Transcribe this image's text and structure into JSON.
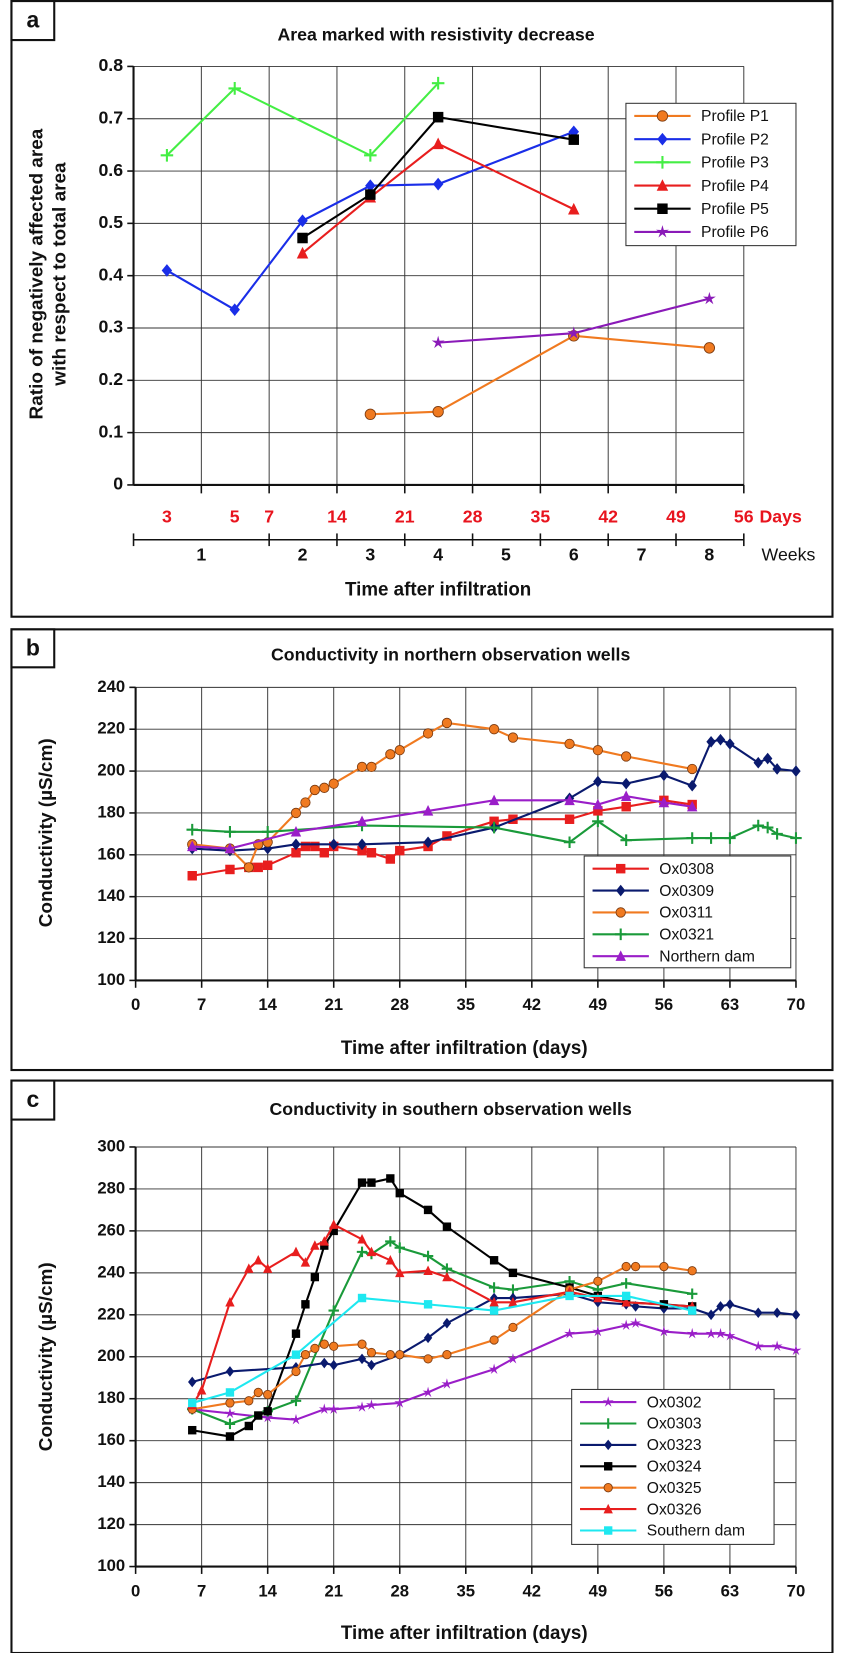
{
  "chart_data": [
    {
      "type": "line",
      "panel_label": "a",
      "title": "Area marked with resistivity decrease",
      "ylabel": [
        "Ratio of negatively affected area",
        "with respect to total area"
      ],
      "xlabel": "Time after infiltration",
      "x_day_labels": [
        "3",
        "5",
        "7",
        "14",
        "21",
        "28",
        "35",
        "42",
        "49",
        "56"
      ],
      "x_day_unit": "Days",
      "x_day_color": "#e8141e",
      "x_week_labels": [
        "1",
        "2",
        "3",
        "4",
        "5",
        "6",
        "7",
        "8"
      ],
      "x_week_unit": "Weeks",
      "ylim": [
        0,
        0.8
      ],
      "yticks": [
        0,
        0.1,
        0.2,
        0.3,
        0.4,
        0.5,
        0.6,
        0.7,
        0.8
      ],
      "grid": true,
      "series": [
        {
          "name": "Profile P1",
          "color": "#f07a20",
          "marker": "circle",
          "values": [
            null,
            null,
            null,
            0.135,
            0.14,
            null,
            0.285,
            null,
            0.262
          ]
        },
        {
          "name": "Profile P2",
          "color": "#1a2ee8",
          "marker": "diamond",
          "values": [
            0.41,
            0.335,
            0.505,
            0.572,
            0.575,
            null,
            0.675,
            null,
            null
          ]
        },
        {
          "name": "Profile P3",
          "color": "#44ee44",
          "marker": "plus",
          "values": [
            0.63,
            0.758,
            null,
            0.63,
            0.768,
            null,
            null,
            null,
            null
          ]
        },
        {
          "name": "Profile P4",
          "color": "#e81e1e",
          "marker": "triangle",
          "values": [
            null,
            null,
            0.443,
            0.55,
            0.652,
            null,
            0.527,
            null,
            null
          ]
        },
        {
          "name": "Profile P5",
          "color": "#000000",
          "marker": "square",
          "values": [
            null,
            null,
            0.472,
            0.555,
            0.703,
            null,
            0.66,
            null,
            null
          ]
        },
        {
          "name": "Profile P6",
          "color": "#8a1ab8",
          "marker": "star",
          "values": [
            null,
            null,
            null,
            null,
            0.272,
            null,
            0.29,
            null,
            0.356
          ]
        }
      ]
    },
    {
      "type": "line",
      "panel_label": "b",
      "title": "Conductivity in northern observation wells",
      "ylabel": "Conductivity (µS/cm)",
      "xlabel": "Time after infiltration (days)",
      "xlim": [
        0,
        70
      ],
      "xticks": [
        0,
        7,
        14,
        21,
        28,
        35,
        42,
        49,
        56,
        63,
        70
      ],
      "ylim": [
        100,
        240
      ],
      "yticks": [
        100,
        120,
        140,
        160,
        180,
        200,
        220,
        240
      ],
      "grid": true,
      "series": [
        {
          "name": "Ox0308",
          "color": "#e81e1e",
          "marker": "square",
          "x": [
            6,
            10,
            12,
            13,
            14,
            17,
            18,
            19,
            20,
            21,
            24,
            25,
            27,
            28,
            31,
            33,
            38,
            40,
            46,
            49,
            52,
            56,
            59
          ],
          "values": [
            150,
            153,
            154,
            154,
            155,
            161,
            164,
            164,
            161,
            164,
            162,
            161,
            158,
            162,
            164,
            169,
            176,
            177,
            177,
            181,
            183,
            186,
            184
          ]
        },
        {
          "name": "Ox0309",
          "color": "#0a1a6e",
          "marker": "diamond",
          "x": [
            6,
            10,
            14,
            17,
            21,
            24,
            31,
            38,
            46,
            49,
            52,
            56,
            59,
            61,
            62,
            63,
            66,
            67,
            68,
            70
          ],
          "values": [
            163,
            162,
            163,
            165,
            165,
            165,
            166,
            173,
            187,
            195,
            194,
            198,
            193,
            214,
            215,
            213,
            204,
            206,
            201,
            200
          ]
        },
        {
          "name": "Ox0311",
          "color": "#f07a20",
          "marker": "circle",
          "x": [
            6,
            10,
            12,
            13,
            14,
            17,
            18,
            19,
            20,
            21,
            24,
            25,
            27,
            28,
            31,
            33,
            38,
            40,
            46,
            49,
            52,
            59
          ],
          "values": [
            165,
            163,
            154,
            165,
            166,
            180,
            185,
            191,
            192,
            194,
            202,
            202,
            208,
            210,
            218,
            223,
            220,
            216,
            213,
            210,
            207,
            201
          ]
        },
        {
          "name": "Ox0321",
          "color": "#1a9a3a",
          "marker": "plus",
          "x": [
            6,
            10,
            14,
            24,
            38,
            46,
            49,
            52,
            59,
            61,
            63,
            66,
            67,
            68,
            70
          ],
          "values": [
            172,
            171,
            171,
            174,
            173,
            166,
            176,
            167,
            168,
            168,
            168,
            174,
            173,
            170,
            168
          ]
        },
        {
          "name": "Northern dam",
          "color": "#9a1ec8",
          "marker": "triangle",
          "x": [
            6,
            10,
            17,
            24,
            31,
            38,
            46,
            49,
            52,
            56,
            59
          ],
          "values": [
            164,
            163,
            171,
            176,
            181,
            186,
            186,
            184,
            188,
            185,
            183
          ]
        }
      ]
    },
    {
      "type": "line",
      "panel_label": "c",
      "title": "Conductivity in southern observation wells",
      "ylabel": "Conductivity (µS/cm)",
      "xlabel": "Time after infiltration (days)",
      "xlim": [
        0,
        70
      ],
      "xticks": [
        0,
        7,
        14,
        21,
        28,
        35,
        42,
        49,
        56,
        63,
        70
      ],
      "ylim": [
        100,
        300
      ],
      "yticks": [
        100,
        120,
        140,
        160,
        180,
        200,
        220,
        240,
        260,
        280,
        300
      ],
      "grid": true,
      "series": [
        {
          "name": "Ox0302",
          "color": "#9a1ec8",
          "marker": "star",
          "x": [
            6,
            10,
            14,
            17,
            20,
            21,
            24,
            25,
            28,
            31,
            33,
            38,
            40,
            46,
            49,
            52,
            53,
            56,
            59,
            61,
            62,
            63,
            66,
            68,
            70
          ],
          "values": [
            175,
            173,
            171,
            170,
            175,
            175,
            176,
            177,
            178,
            183,
            187,
            194,
            199,
            211,
            212,
            215,
            216,
            212,
            211,
            211,
            211,
            210,
            205,
            205,
            203
          ]
        },
        {
          "name": "Ox0303",
          "color": "#1a9a3a",
          "marker": "plus",
          "x": [
            6,
            10,
            14,
            17,
            21,
            24,
            25,
            27,
            28,
            31,
            33,
            38,
            40,
            46,
            49,
            52,
            59
          ],
          "values": [
            175,
            168,
            174,
            179,
            222,
            250,
            249,
            255,
            252,
            248,
            242,
            233,
            232,
            236,
            232,
            235,
            230
          ]
        },
        {
          "name": "Ox0323",
          "color": "#0a1a6e",
          "marker": "diamond",
          "x": [
            6,
            10,
            17,
            20,
            21,
            24,
            25,
            28,
            31,
            33,
            38,
            40,
            46,
            49,
            52,
            53,
            56,
            59,
            61,
            62,
            63,
            66,
            68,
            70
          ],
          "values": [
            188,
            193,
            195,
            197,
            196,
            199,
            196,
            201,
            209,
            216,
            228,
            228,
            230,
            226,
            225,
            224,
            223,
            223,
            220,
            224,
            225,
            221,
            221,
            220
          ]
        },
        {
          "name": "Ox0324",
          "color": "#000000",
          "marker": "square",
          "x": [
            6,
            10,
            12,
            13,
            14,
            17,
            18,
            19,
            20,
            21,
            24,
            25,
            27,
            28,
            31,
            33,
            38,
            40,
            46,
            49,
            52,
            56,
            59
          ],
          "values": [
            165,
            162,
            167,
            172,
            174,
            211,
            225,
            238,
            253,
            260,
            283,
            283,
            285,
            278,
            270,
            262,
            246,
            240,
            233,
            229,
            226,
            225,
            224
          ]
        },
        {
          "name": "Ox0325",
          "color": "#f07a20",
          "marker": "circle",
          "x": [
            6,
            10,
            12,
            13,
            14,
            17,
            18,
            19,
            20,
            21,
            24,
            25,
            27,
            28,
            31,
            33,
            38,
            40,
            46,
            49,
            52,
            53,
            56,
            59
          ],
          "values": [
            175,
            178,
            179,
            183,
            182,
            193,
            201,
            204,
            206,
            205,
            206,
            202,
            201,
            201,
            199,
            201,
            208,
            214,
            232,
            236,
            243,
            243,
            243,
            241
          ]
        },
        {
          "name": "Ox0326",
          "color": "#e81e1e",
          "marker": "triangle",
          "x": [
            6,
            7,
            10,
            12,
            13,
            14,
            17,
            18,
            19,
            20,
            21,
            24,
            25,
            27,
            28,
            31,
            33,
            38,
            40,
            46,
            49,
            52,
            59
          ],
          "values": [
            177,
            184,
            226,
            242,
            246,
            242,
            250,
            245,
            253,
            255,
            263,
            256,
            250,
            246,
            240,
            241,
            238,
            226,
            226,
            231,
            228,
            226,
            224
          ]
        },
        {
          "name": "Southern dam",
          "color": "#1ee8f0",
          "marker": "square",
          "x": [
            6,
            10,
            17,
            24,
            31,
            38,
            46,
            52,
            59
          ],
          "values": [
            178,
            183,
            201,
            228,
            225,
            222,
            229,
            229,
            222
          ]
        }
      ]
    }
  ]
}
